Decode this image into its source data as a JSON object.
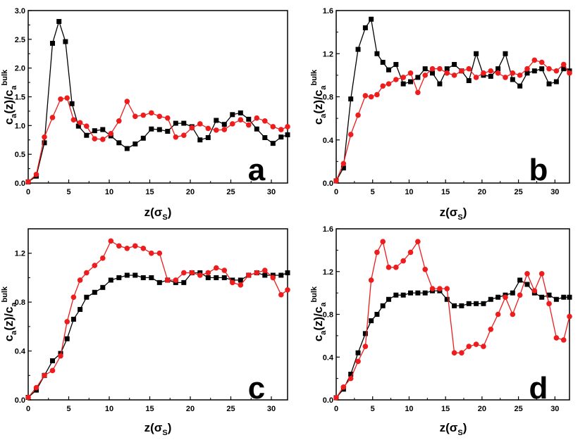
{
  "chart_data": [
    {
      "type": "line",
      "panel_letter": "a",
      "xlabel": {
        "main": "z(σ",
        "sub": "S",
        "close": ")"
      },
      "ylabel": {
        "c": "c",
        "a1": "a",
        "mid": "(z)/c",
        "a2": "a",
        "sup": "bulk"
      },
      "xlim": [
        0,
        32
      ],
      "ylim": [
        0,
        3.0
      ],
      "x_ticks": [
        0,
        5,
        10,
        15,
        20,
        25,
        30
      ],
      "x_tick_labels": [
        "0",
        "5",
        "10",
        "15",
        "20",
        "25",
        "30"
      ],
      "y_ticks": [
        0,
        0.5,
        1.0,
        1.5,
        2.0,
        2.5,
        3.0
      ],
      "y_tick_labels": [
        "0.0",
        "0.5",
        "1.0",
        "1.5",
        "2.0",
        "2.5",
        "3.0"
      ],
      "series": [
        {
          "name": "black",
          "color": "#000000",
          "marker": "square",
          "x": [
            0,
            1,
            2,
            3,
            3.8,
            4.6,
            5.4,
            6.2,
            7.2,
            8.2,
            9.2,
            10.2,
            11.2,
            12.2,
            13.2,
            14.2,
            15.2,
            16.2,
            17.2,
            18.2,
            19.2,
            20.2,
            21.2,
            22.2,
            23.2,
            24.2,
            25.2,
            26.2,
            27.2,
            28.2,
            29.2,
            30.2,
            31.2,
            32
          ],
          "y": [
            0.02,
            0.12,
            0.7,
            2.43,
            2.81,
            2.46,
            1.38,
            0.99,
            0.83,
            0.91,
            0.93,
            0.82,
            0.7,
            0.6,
            0.68,
            0.78,
            0.94,
            0.93,
            0.9,
            1.04,
            1.04,
            0.98,
            0.75,
            0.79,
            1.09,
            1.02,
            1.19,
            1.22,
            1.11,
            0.94,
            0.79,
            0.69,
            0.8,
            0.84
          ]
        },
        {
          "name": "red",
          "color": "#ee1c1c",
          "marker": "circle",
          "x": [
            0,
            1,
            2,
            3,
            4,
            4.8,
            5.6,
            6.4,
            7.2,
            8.2,
            9.2,
            10.2,
            11.2,
            12.2,
            13.2,
            14.2,
            15.2,
            16.2,
            17.2,
            18.2,
            19.2,
            20.2,
            21.2,
            22.2,
            23.2,
            24.2,
            25.2,
            26.2,
            27.2,
            28.2,
            29.2,
            30.2,
            31.2,
            32
          ],
          "y": [
            0.02,
            0.15,
            0.8,
            1.14,
            1.46,
            1.48,
            1.1,
            1.05,
            0.99,
            0.77,
            0.76,
            0.86,
            1.08,
            1.42,
            1.16,
            1.18,
            1.22,
            1.16,
            1.13,
            0.8,
            0.83,
            0.96,
            1.03,
            0.95,
            0.92,
            0.93,
            1.03,
            1.1,
            1.01,
            1.13,
            1.08,
            0.98,
            0.93,
            0.98
          ]
        }
      ]
    },
    {
      "type": "line",
      "panel_letter": "b",
      "xlabel": {
        "main": "z(σ",
        "sub": "S",
        "close": ")"
      },
      "ylabel": {
        "c": "c",
        "a1": "a",
        "mid": "(z)/c",
        "a2": "a",
        "sup": "bulk"
      },
      "xlim": [
        0,
        32
      ],
      "ylim": [
        0,
        1.6
      ],
      "x_ticks": [
        0,
        5,
        10,
        15,
        20,
        25,
        30
      ],
      "x_tick_labels": [
        "0",
        "5",
        "10",
        "15",
        "20",
        "25",
        "30"
      ],
      "y_ticks": [
        0,
        0.4,
        0.8,
        1.2,
        1.6
      ],
      "y_tick_labels": [
        "0.0",
        "0.4",
        "0.8",
        "1.2",
        "1.6"
      ],
      "series": [
        {
          "name": "black",
          "color": "#000000",
          "marker": "square",
          "x": [
            0,
            1,
            2,
            3,
            4,
            4.8,
            5.6,
            6.4,
            7.2,
            8.2,
            9.2,
            10.2,
            11.2,
            12.2,
            13.2,
            14.2,
            15.2,
            16.2,
            17.2,
            18.2,
            19.2,
            20.2,
            21.2,
            22.2,
            23.2,
            24.2,
            25.2,
            26.2,
            27.2,
            28.2,
            29.2,
            30.2,
            31.2,
            32
          ],
          "y": [
            0.02,
            0.14,
            0.78,
            1.24,
            1.44,
            1.52,
            1.2,
            1.12,
            1.05,
            1.1,
            0.92,
            0.94,
            0.98,
            1.06,
            1.02,
            0.92,
            1.06,
            1.1,
            1.04,
            0.95,
            1.2,
            1.0,
            0.99,
            1.06,
            1.2,
            0.96,
            0.9,
            1.02,
            1.04,
            1.06,
            0.92,
            0.94,
            1.06,
            1.04
          ]
        },
        {
          "name": "red",
          "color": "#ee1c1c",
          "marker": "circle",
          "x": [
            0,
            1,
            2,
            3,
            4,
            4.8,
            5.6,
            6.4,
            7.2,
            8.2,
            9.2,
            10.2,
            11.2,
            12.2,
            13.2,
            14.2,
            15.2,
            16.2,
            17.2,
            18.2,
            19.2,
            20.2,
            21.2,
            22.2,
            23.2,
            24.2,
            25.2,
            26.2,
            27.2,
            28.2,
            29.2,
            30.2,
            31.2,
            32
          ],
          "y": [
            0.02,
            0.18,
            0.45,
            0.63,
            0.81,
            0.8,
            0.82,
            0.9,
            0.92,
            0.96,
            0.98,
            1.02,
            0.84,
            1.0,
            1.06,
            1.06,
            1.02,
            1.0,
            1.04,
            1.06,
            0.98,
            1.02,
            1.04,
            1.02,
            0.98,
            1.02,
            1.0,
            1.06,
            1.14,
            1.12,
            1.06,
            1.04,
            1.1,
            1.02
          ]
        }
      ]
    },
    {
      "type": "line",
      "panel_letter": "c",
      "xlabel": {
        "main": "z(σ",
        "sub": "S",
        "close": ")"
      },
      "ylabel": {
        "c": "c",
        "a1": "a",
        "mid": "(z)/c",
        "a2": "a",
        "sup": "bulk"
      },
      "xlim": [
        0,
        32
      ],
      "ylim": [
        0,
        1.4
      ],
      "x_ticks": [
        0,
        5,
        10,
        15,
        20,
        25,
        30
      ],
      "x_tick_labels": [
        "0",
        "5",
        "10",
        "15",
        "20",
        "25",
        "30"
      ],
      "y_ticks": [
        0,
        0.4,
        0.8,
        1.2
      ],
      "y_tick_labels": [
        "0.0",
        "0.4",
        "0.8",
        "1.2"
      ],
      "series": [
        {
          "name": "black",
          "color": "#000000",
          "marker": "square",
          "x": [
            0,
            1,
            2,
            3,
            4,
            4.8,
            5.6,
            6.4,
            7.2,
            8.2,
            9.2,
            10.2,
            11.2,
            12.2,
            13.2,
            14.2,
            15.2,
            16.2,
            17.2,
            18.2,
            19.2,
            20.2,
            21.2,
            22.2,
            23.2,
            24.2,
            25.2,
            26.2,
            27.2,
            28.2,
            29.2,
            30.2,
            31.2,
            32
          ],
          "y": [
            0.02,
            0.08,
            0.2,
            0.32,
            0.38,
            0.5,
            0.66,
            0.74,
            0.84,
            0.88,
            0.92,
            0.98,
            1.0,
            1.02,
            1.02,
            1.0,
            1.0,
            0.96,
            0.98,
            0.96,
            0.96,
            1.04,
            1.04,
            1.0,
            1.0,
            1.0,
            0.98,
            0.98,
            1.02,
            1.04,
            1.02,
            1.02,
            1.02,
            1.04
          ]
        },
        {
          "name": "red",
          "color": "#ee1c1c",
          "marker": "circle",
          "x": [
            0,
            1,
            2,
            3,
            4,
            4.8,
            5.6,
            6.4,
            7.2,
            8.2,
            9.2,
            10.2,
            11.2,
            12.2,
            13.2,
            14.2,
            15.2,
            16.2,
            17.2,
            18.2,
            19.2,
            20.2,
            21.2,
            22.2,
            23.2,
            24.2,
            25.2,
            26.2,
            27.2,
            28.2,
            29.2,
            30.2,
            31.2,
            32
          ],
          "y": [
            0.02,
            0.1,
            0.2,
            0.24,
            0.36,
            0.64,
            0.84,
            0.98,
            1.04,
            1.1,
            1.16,
            1.3,
            1.26,
            1.24,
            1.26,
            1.24,
            1.2,
            1.2,
            0.98,
            0.98,
            1.04,
            1.04,
            1.02,
            1.04,
            1.08,
            1.06,
            0.96,
            0.94,
            1.02,
            1.04,
            1.06,
            1.0,
            0.86,
            0.9
          ]
        }
      ]
    },
    {
      "type": "line",
      "panel_letter": "d",
      "xlabel": {
        "main": "z(σ",
        "sub": "S",
        "close": ")"
      },
      "ylabel": {
        "c": "c",
        "a1": "a",
        "mid": "(z)/c",
        "a2": "a",
        "sup": "bulk"
      },
      "xlim": [
        0,
        32
      ],
      "ylim": [
        0,
        1.6
      ],
      "x_ticks": [
        0,
        5,
        10,
        15,
        20,
        25,
        30
      ],
      "x_tick_labels": [
        "0",
        "5",
        "10",
        "15",
        "20",
        "25",
        "30"
      ],
      "y_ticks": [
        0,
        0.4,
        0.8,
        1.2,
        1.6
      ],
      "y_tick_labels": [
        "0.0",
        "0.4",
        "0.8",
        "1.2",
        "1.6"
      ],
      "series": [
        {
          "name": "black",
          "color": "#000000",
          "marker": "square",
          "x": [
            0,
            1,
            2,
            3,
            4,
            4.8,
            5.6,
            6.4,
            7.2,
            8.2,
            9.2,
            10.2,
            11.2,
            12.2,
            13.2,
            14.2,
            15.2,
            16.2,
            17.2,
            18.2,
            19.2,
            20.2,
            21.2,
            22.2,
            23.2,
            24.2,
            25.2,
            26.2,
            27.2,
            28.2,
            29.2,
            30.2,
            31.2,
            32
          ],
          "y": [
            0.02,
            0.1,
            0.24,
            0.44,
            0.62,
            0.74,
            0.8,
            0.88,
            0.94,
            0.98,
            0.98,
            1.0,
            1.0,
            1.0,
            1.02,
            1.02,
            0.94,
            0.88,
            0.88,
            0.9,
            0.9,
            0.9,
            0.94,
            0.96,
            0.98,
            1.0,
            1.12,
            1.08,
            1.0,
            0.96,
            0.98,
            0.94,
            0.96,
            0.96
          ]
        },
        {
          "name": "red",
          "color": "#ee1c1c",
          "marker": "circle",
          "x": [
            0,
            1,
            2,
            3,
            4,
            4.8,
            5.6,
            6.4,
            7.2,
            8.2,
            9.2,
            10.2,
            11.2,
            12.2,
            13.2,
            14.2,
            15.2,
            16.2,
            17.2,
            18.2,
            19.2,
            20.2,
            21.2,
            22.2,
            23.2,
            24.2,
            25.2,
            26.2,
            27.2,
            28.2,
            29.2,
            30.2,
            31.2,
            32
          ],
          "y": [
            0.02,
            0.12,
            0.2,
            0.36,
            0.5,
            1.12,
            1.38,
            1.48,
            1.24,
            1.24,
            1.3,
            1.38,
            1.48,
            1.22,
            1.04,
            1.04,
            1.04,
            0.44,
            0.44,
            0.5,
            0.52,
            0.5,
            0.66,
            0.8,
            0.96,
            0.8,
            0.98,
            1.18,
            1.02,
            1.18,
            0.9,
            0.58,
            0.56,
            0.78
          ]
        }
      ]
    }
  ]
}
